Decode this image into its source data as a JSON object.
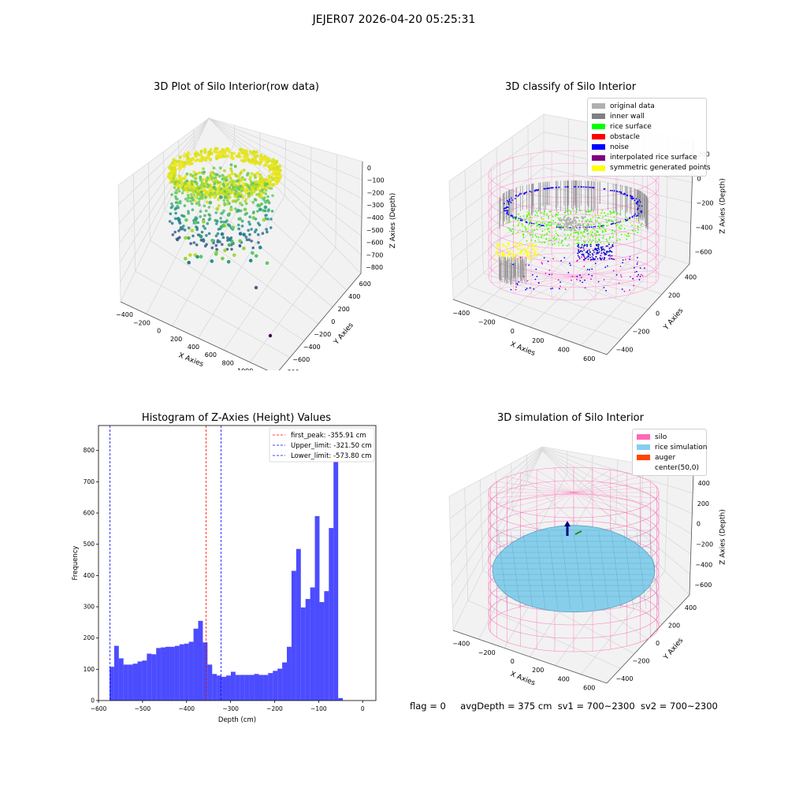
{
  "suptitle": "JEJER07 2026-04-20 05:25:31",
  "panels": {
    "raw": {
      "title": "3D Plot of Silo Interior(row data)",
      "xlabel": "X Axies",
      "ylabel": "Y Axies",
      "zlabel": "Z Axies (Depth)",
      "xticks": [
        "−400",
        "−200",
        "0",
        "200",
        "400",
        "600",
        "800",
        "1000",
        "1200"
      ],
      "yticks": [
        "−800",
        "−600",
        "−400",
        "−200",
        "0",
        "200",
        "400",
        "600"
      ],
      "zticks": [
        "0",
        "−100",
        "−200",
        "−300",
        "−400",
        "−500",
        "−600",
        "−700",
        "−800"
      ]
    },
    "classify": {
      "title": "3D classify of Silo Interior",
      "xlabel": "X Axies",
      "ylabel": "Y Axies",
      "zlabel": "Z Axies (Depth)",
      "xticks": [
        "−400",
        "−200",
        "0",
        "200",
        "400",
        "600"
      ],
      "yticks": [
        "−400",
        "−200",
        "0",
        "200",
        "400"
      ],
      "zticks": [
        "200",
        "0",
        "−200",
        "−400",
        "−600"
      ],
      "legend": [
        {
          "label": "original data",
          "color": "#b0b0b0"
        },
        {
          "label": "inner wall",
          "color": "#808080"
        },
        {
          "label": "rice surface",
          "color": "#00ff00"
        },
        {
          "label": "obstacle",
          "color": "#ff0000"
        },
        {
          "label": "noise",
          "color": "#0000ff"
        },
        {
          "label": "interpolated rice surface",
          "color": "#800080"
        },
        {
          "label": "symmetric generated points",
          "color": "#ffff00"
        }
      ]
    },
    "simulation": {
      "title": "3D simulation of Silo Interior",
      "xlabel": "X Axies",
      "ylabel": "Y Axies",
      "zlabel": "Z Axies (Depth)",
      "xticks": [
        "−400",
        "−200",
        "0",
        "200",
        "400",
        "600"
      ],
      "yticks": [
        "−400",
        "−200",
        "0",
        "200",
        "400"
      ],
      "zticks": [
        "400",
        "200",
        "0",
        "−200",
        "−400",
        "−600"
      ],
      "legend": [
        {
          "label": "silo",
          "color": "#ff69b4"
        },
        {
          "label": "rice simulation",
          "color": "#87ceeb"
        },
        {
          "label": "auger",
          "color": "#ff4500"
        },
        {
          "label": "center(50,0)",
          "color": ""
        }
      ]
    }
  },
  "status": {
    "flag": "flag = 0",
    "avg": "avgDepth = 375 cm",
    "sv1": "sv1 = 700~2300",
    "sv2": "sv2 = 700~2300"
  },
  "chart_data": [
    {
      "type": "bar",
      "title": "Histogram of Z-Axies (Height) Values",
      "xlabel": "Depth (cm)",
      "ylabel": "Frequency",
      "xlim": [
        -600,
        30
      ],
      "ylim": [
        0,
        880
      ],
      "xticks": [
        -600,
        -500,
        -400,
        -300,
        -200,
        -100,
        0
      ],
      "yticks": [
        0,
        100,
        200,
        300,
        400,
        500,
        600,
        700,
        800
      ],
      "bin_start": -575,
      "bin_width": 10.6,
      "values": [
        108,
        175,
        135,
        115,
        115,
        118,
        125,
        128,
        150,
        148,
        168,
        170,
        172,
        172,
        175,
        180,
        182,
        188,
        230,
        255,
        186,
        115,
        85,
        80,
        76,
        80,
        92,
        82,
        82,
        82,
        82,
        85,
        82,
        82,
        88,
        95,
        102,
        122,
        172,
        415,
        485,
        298,
        325,
        362,
        590,
        315,
        350,
        552,
        835,
        8
      ],
      "color": "#0000ff",
      "lines": [
        {
          "label": "first_peak: -355.91 cm",
          "x": -355.91,
          "color": "#ff0000"
        },
        {
          "label": "Upper_limit: -321.50 cm",
          "x": -321.5,
          "color": "#0000ff"
        },
        {
          "label": "Lower_limit: -573.80 cm",
          "x": -573.8,
          "color": "#0000ff"
        }
      ],
      "legend_position": "top-right"
    }
  ]
}
